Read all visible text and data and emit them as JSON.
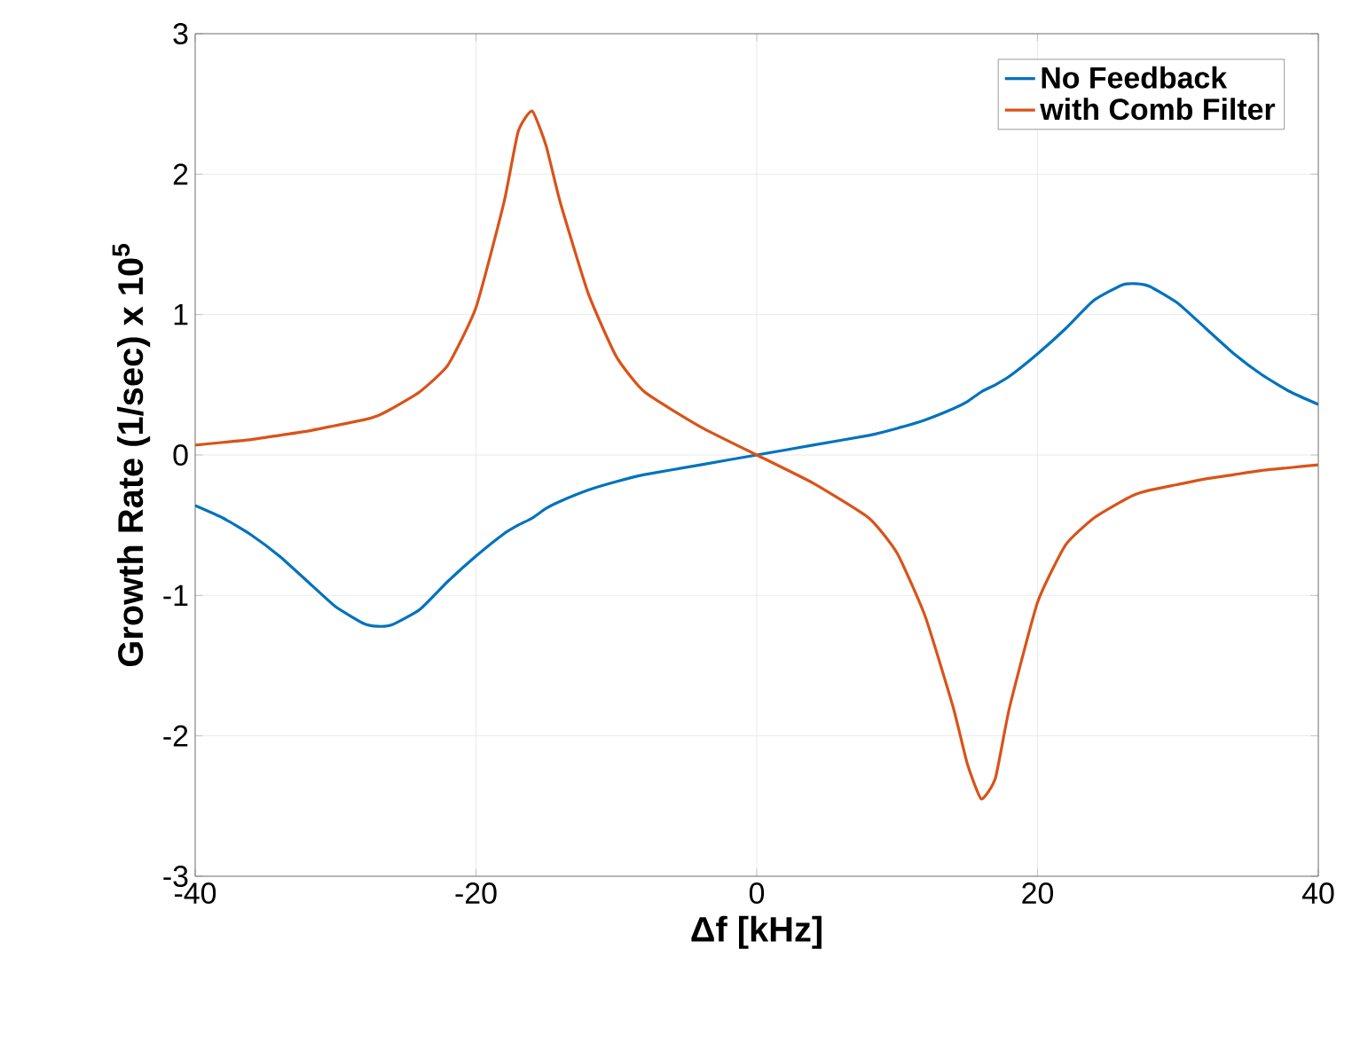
{
  "chart_data": {
    "type": "line",
    "xlabel": "Δf [kHz]",
    "ylabel": "Growth Rate (1/sec) x 10$^{5}$",
    "x": [
      -40,
      -38,
      -36,
      -34,
      -32,
      -30,
      -28,
      -27,
      -26,
      -24,
      -22,
      -20,
      -18,
      -17,
      -16,
      -15,
      -14,
      -12,
      -10,
      -8,
      -4,
      0,
      4,
      8,
      10,
      12,
      14,
      15,
      16,
      17,
      18,
      20,
      22,
      24,
      26,
      27,
      28,
      30,
      32,
      34,
      36,
      38,
      40
    ],
    "series": [
      {
        "name": "No Feedback",
        "color": "#0072bd",
        "values": [
          -0.36,
          -0.45,
          -0.57,
          -0.72,
          -0.9,
          -1.08,
          -1.2,
          -1.22,
          -1.21,
          -1.1,
          -0.9,
          -0.72,
          -0.56,
          -0.5,
          -0.45,
          -0.38,
          -0.33,
          -0.25,
          -0.19,
          -0.14,
          -0.07,
          0,
          0.07,
          0.14,
          0.19,
          0.25,
          0.33,
          0.38,
          0.45,
          0.5,
          0.56,
          0.72,
          0.9,
          1.1,
          1.21,
          1.22,
          1.2,
          1.08,
          0.9,
          0.72,
          0.57,
          0.45,
          0.36
        ]
      },
      {
        "name": "with Comb Filter",
        "color": "#d95319",
        "values": [
          0.07,
          0.09,
          0.11,
          0.14,
          0.17,
          0.21,
          0.25,
          0.28,
          0.33,
          0.45,
          0.64,
          1.05,
          1.8,
          2.3,
          2.45,
          2.2,
          1.8,
          1.15,
          0.7,
          0.45,
          0.2,
          0,
          -0.2,
          -0.45,
          -0.7,
          -1.15,
          -1.8,
          -2.2,
          -2.45,
          -2.3,
          -1.8,
          -1.05,
          -0.64,
          -0.45,
          -0.33,
          -0.28,
          -0.25,
          -0.21,
          -0.17,
          -0.14,
          -0.11,
          -0.09,
          -0.07
        ]
      }
    ],
    "xlim": [
      -40,
      40
    ],
    "ylim": [
      -3,
      3
    ],
    "xticks": [
      -40,
      -20,
      0,
      20,
      40
    ],
    "yticks": [
      -3,
      -2,
      -1,
      0,
      1,
      2,
      3
    ],
    "grid": true,
    "legend": "top right",
    "line_style": "solid",
    "marker": "none"
  }
}
